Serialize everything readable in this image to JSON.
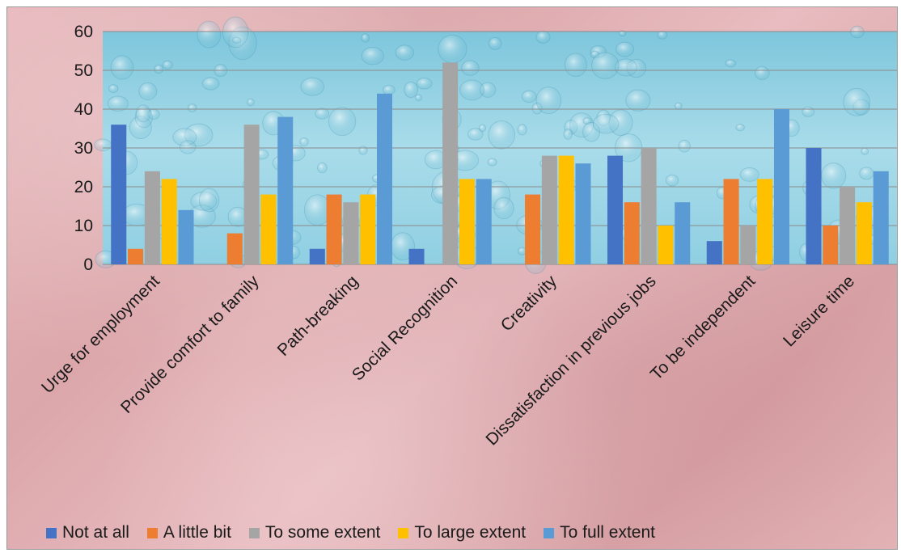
{
  "chart_data": {
    "type": "bar",
    "title": "",
    "xlabel": "",
    "ylabel": "",
    "ylim": [
      0,
      60
    ],
    "yticks": [
      0,
      10,
      20,
      30,
      40,
      50,
      60
    ],
    "grid": true,
    "legend_position": "bottom",
    "categories": [
      "Urge for employment",
      "Provide comfort to family",
      "Path-breaking",
      "Social Recognition",
      "Creativity",
      "Dissatisfaction in previous jobs",
      "To be independent",
      "Leisure time"
    ],
    "series": [
      {
        "name": "Not at all",
        "color": "#4472c4",
        "values": [
          36,
          0,
          4,
          4,
          0,
          28,
          6,
          30
        ]
      },
      {
        "name": "A little bit",
        "color": "#ed7d31",
        "values": [
          4,
          8,
          18,
          0,
          18,
          16,
          22,
          10
        ]
      },
      {
        "name": "To some extent",
        "color": "#a5a5a5",
        "values": [
          24,
          36,
          16,
          52,
          28,
          30,
          10,
          20
        ]
      },
      {
        "name": "To large extent",
        "color": "#ffc000",
        "values": [
          22,
          18,
          18,
          22,
          28,
          10,
          22,
          16
        ]
      },
      {
        "name": "To full extent",
        "color": "#5b9bd5",
        "values": [
          14,
          38,
          44,
          22,
          26,
          16,
          40,
          24
        ]
      }
    ]
  }
}
